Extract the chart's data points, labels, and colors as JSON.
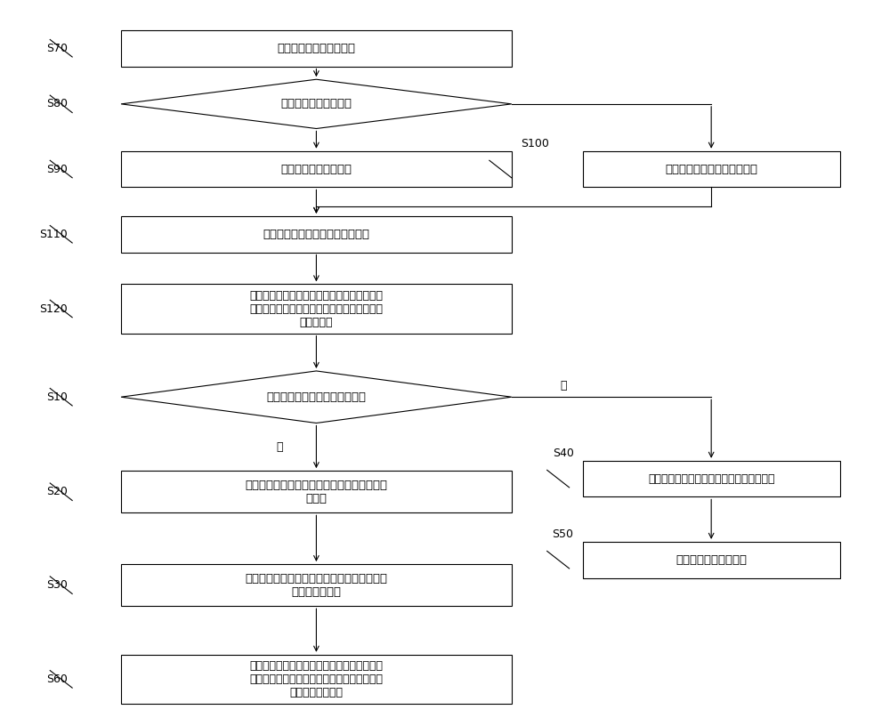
{
  "bg_color": "#ffffff",
  "box_color": "#ffffff",
  "box_edge": "#000000",
  "arrow_color": "#000000",
  "label_color": "#000000",
  "font_size": 9.5,
  "label_font_size": 9,
  "lw": 0.8,
  "s70_text": "获取本地预存的登录信息",
  "s80_text": "判断是否存在本地账号",
  "s90_text": "读取本地账号，并登录",
  "s100_text": "则输入账号密码注册，并登录",
  "s110_text": "登录成功后，获取开启插件的指令",
  "s120_text": "根据所述指令，将所述插件嵌入至浏览器页面\n，以供所述插件进一步的判断当前页面是否包\n括列表页面",
  "s10_text": "判断当前页面是否包括列表页面",
  "s20_text": "根据所述列表页面对所述当前页面生成目标列\n表模块",
  "s40_text": "获取根据所述当前页面生成的详细字段信息",
  "s30_text": "采集所述目标列表模块的详细页信息，并生成\n详细页路径规则",
  "s50_text": "保存所述详细字段信息",
  "s60_text": "将保存的所述详细页路径规则发送至云端数据\n库，以供对所述云端数据库中的所述详细页路\n径规则的再次读取",
  "yes_text": "是",
  "no_text": "否"
}
